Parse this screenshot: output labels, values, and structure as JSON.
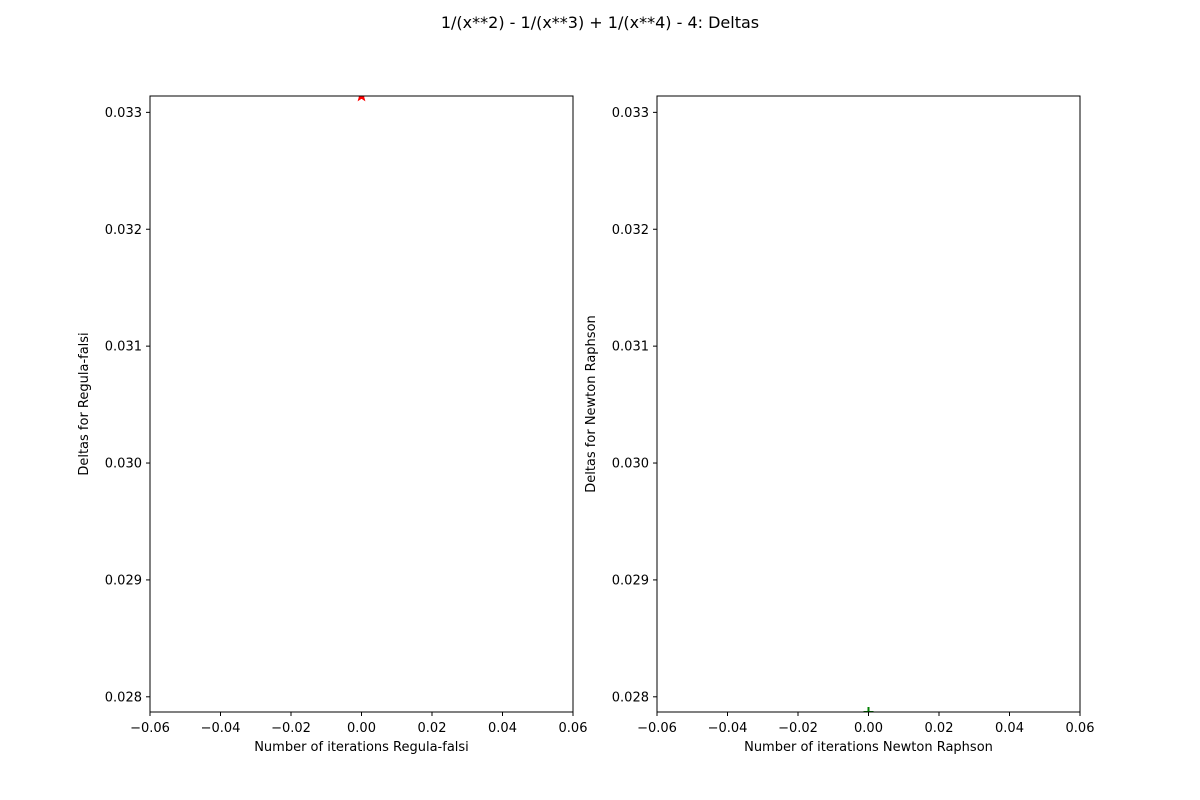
{
  "figure": {
    "suptitle": "1/(x**2) - 1/(x**3) + 1/(x**4) - 4: Deltas"
  },
  "chart_data": [
    {
      "type": "scatter",
      "title": "",
      "xlabel": "Number of iterations Regula-falsi",
      "ylabel": "Deltas for Regula-falsi",
      "xlim": [
        -0.06,
        0.06
      ],
      "ylim": [
        0.02787,
        0.03314
      ],
      "xticks": [
        "−0.06",
        "−0.04",
        "−0.02",
        "0.00",
        "0.02",
        "0.04",
        "0.06"
      ],
      "xtick_values": [
        -0.06,
        -0.04,
        -0.02,
        0.0,
        0.02,
        0.04,
        0.06
      ],
      "yticks": [
        "0.028",
        "0.029",
        "0.030",
        "0.031",
        "0.032",
        "0.033"
      ],
      "ytick_values": [
        0.028,
        0.029,
        0.03,
        0.031,
        0.032,
        0.033
      ],
      "grid": false,
      "series": [
        {
          "marker": "star",
          "color": "#ff0000",
          "x": [
            0
          ],
          "y": [
            0.03314
          ]
        }
      ]
    },
    {
      "type": "scatter",
      "title": "",
      "xlabel": "Number of iterations Newton Raphson",
      "ylabel": "Deltas for Newton Raphson",
      "xlim": [
        -0.06,
        0.06
      ],
      "ylim": [
        0.02787,
        0.03314
      ],
      "xticks": [
        "−0.06",
        "−0.04",
        "−0.02",
        "0.00",
        "0.02",
        "0.04",
        "0.06"
      ],
      "xtick_values": [
        -0.06,
        -0.04,
        -0.02,
        0.0,
        0.02,
        0.04,
        0.06
      ],
      "yticks": [
        "0.028",
        "0.029",
        "0.030",
        "0.031",
        "0.032",
        "0.033"
      ],
      "ytick_values": [
        0.028,
        0.029,
        0.03,
        0.031,
        0.032,
        0.033
      ],
      "grid": false,
      "series": [
        {
          "marker": "plus",
          "color": "#008000",
          "x": [
            0
          ],
          "y": [
            0.02787
          ]
        }
      ]
    }
  ]
}
